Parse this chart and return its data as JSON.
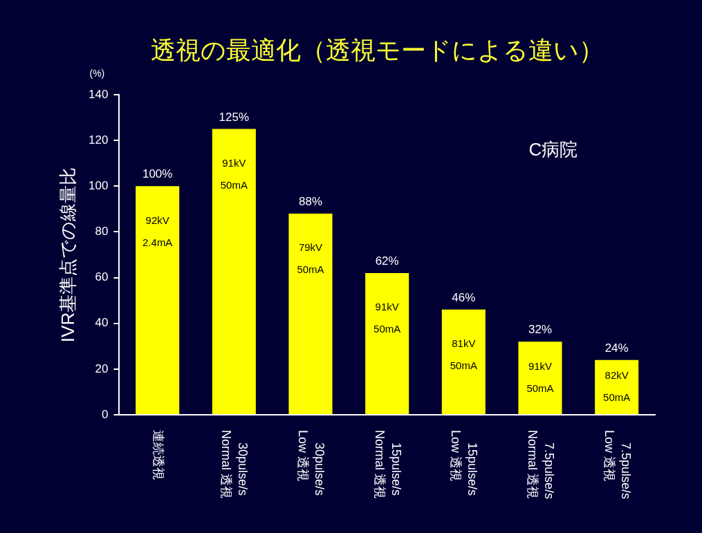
{
  "chart_data": {
    "type": "bar",
    "title": "透視の最適化（透視モードによる違い）",
    "ylabel": "IVR基準点での線量比",
    "categories": [
      "連続透視",
      "30pulse/s\nNormal 透視",
      "30pulse/s\nLow 透視",
      "15pulse/s\nNormal 透視",
      "15pulse/s\nLow 透視",
      "7.5pulse/s\nNormal 透視",
      "7.5pulse/s\nLow 透視"
    ],
    "values": [
      100,
      125,
      88,
      62,
      46,
      32,
      24
    ],
    "value_labels": [
      "100%",
      "125%",
      "88%",
      "62%",
      "46%",
      "32%",
      "24%"
    ],
    "color": "#ffff00",
    "ylim": [
      0,
      140
    ],
    "yticks": [
      0,
      20,
      40,
      60,
      80,
      100,
      120,
      140
    ],
    "grid": false,
    "legend": false,
    "annotations": [
      "(%)",
      "C病院",
      "92kV",
      "2.4mA",
      "91kV",
      "50mA",
      "79kV",
      "50mA",
      "91kV",
      "50mA",
      "81kV",
      "50mA",
      "91kV",
      "50mA",
      "82kV",
      "50mA"
    ]
  }
}
